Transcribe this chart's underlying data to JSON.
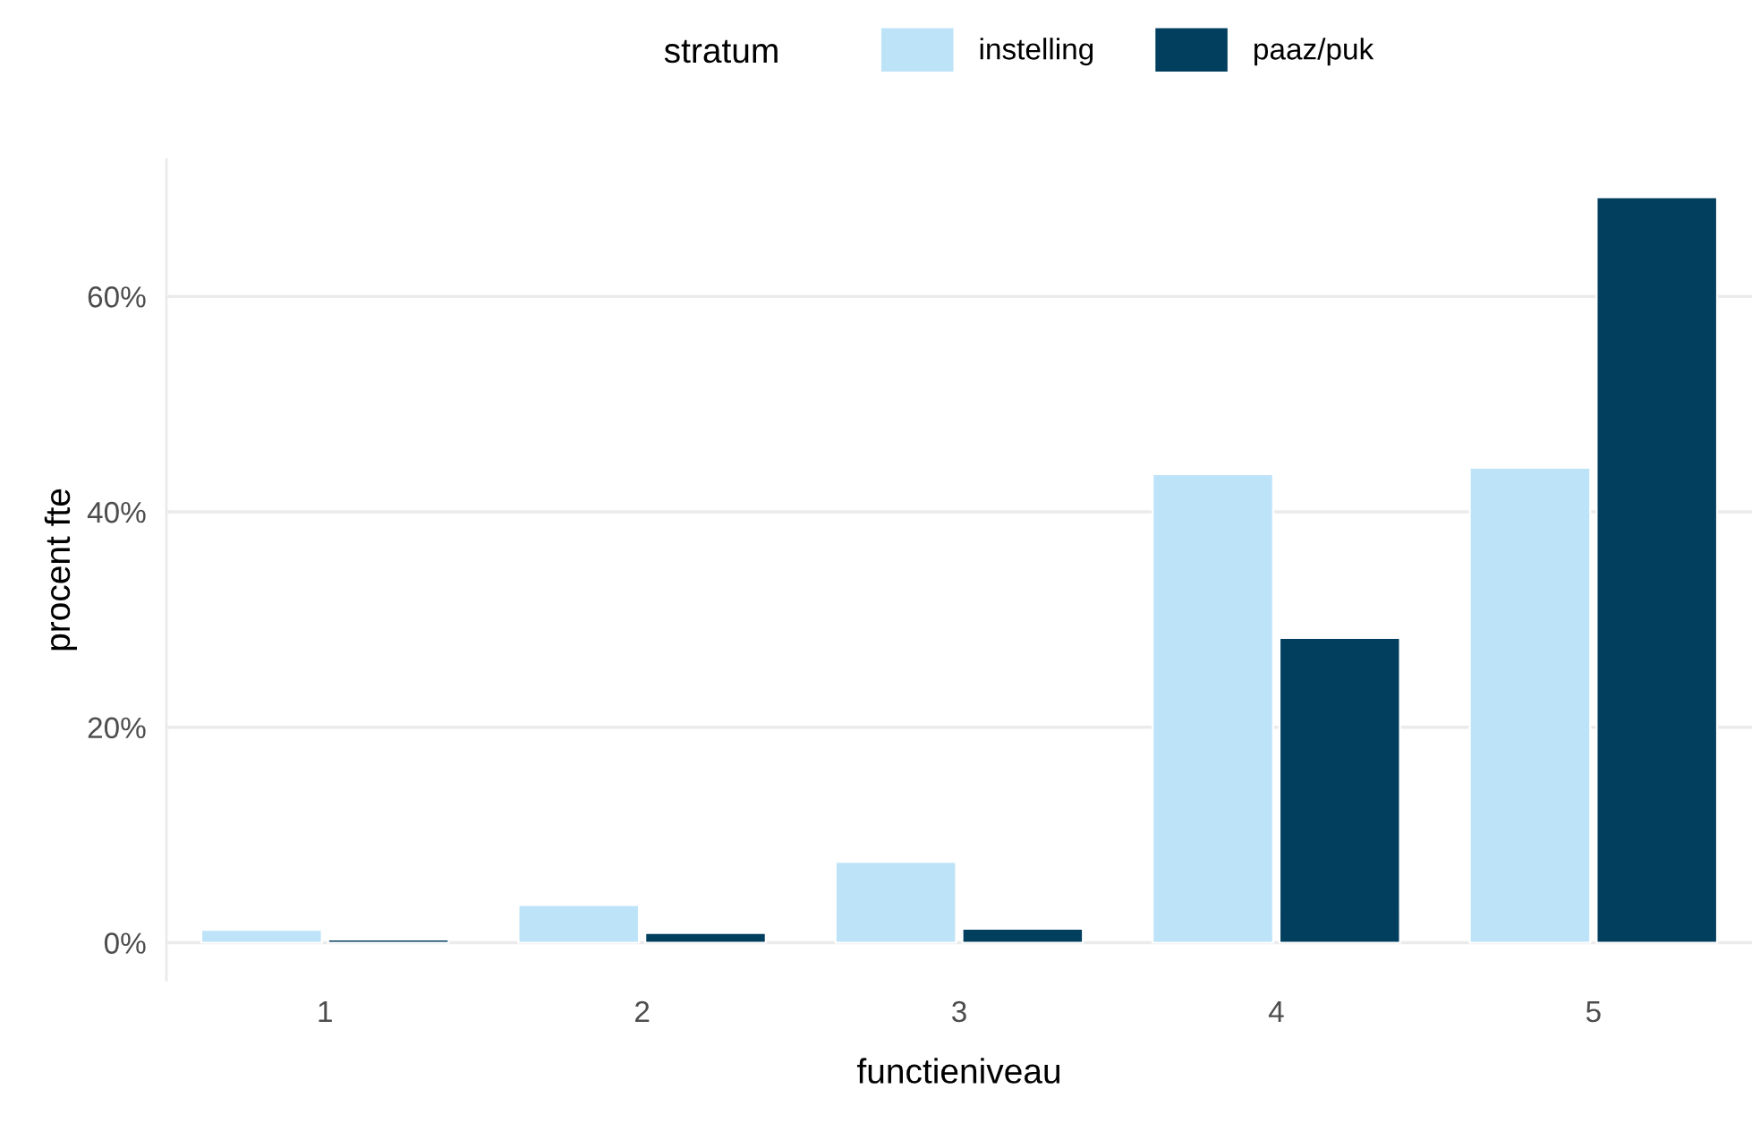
{
  "chart_data": {
    "type": "bar",
    "xlabel": "functieniveau",
    "ylabel": "procent fte",
    "legend_title": "stratum",
    "legend": "top",
    "categories": [
      "1",
      "2",
      "3",
      "4",
      "5"
    ],
    "series": [
      {
        "name": "instelling",
        "color": "#bde3f8",
        "values": [
          1.2,
          3.5,
          7.5,
          43.5,
          44.1
        ]
      },
      {
        "name": "paaz/puk",
        "color": "#023f5f",
        "values": [
          0.3,
          0.9,
          1.3,
          28.3,
          69.2
        ]
      }
    ],
    "ylim": [
      -3.5,
      72.7
    ],
    "yticks": [
      {
        "value": 0,
        "label": "0%"
      },
      {
        "value": 20,
        "label": "20%"
      },
      {
        "value": 40,
        "label": "40%"
      },
      {
        "value": 60,
        "label": "60%"
      }
    ],
    "grid": "y"
  }
}
